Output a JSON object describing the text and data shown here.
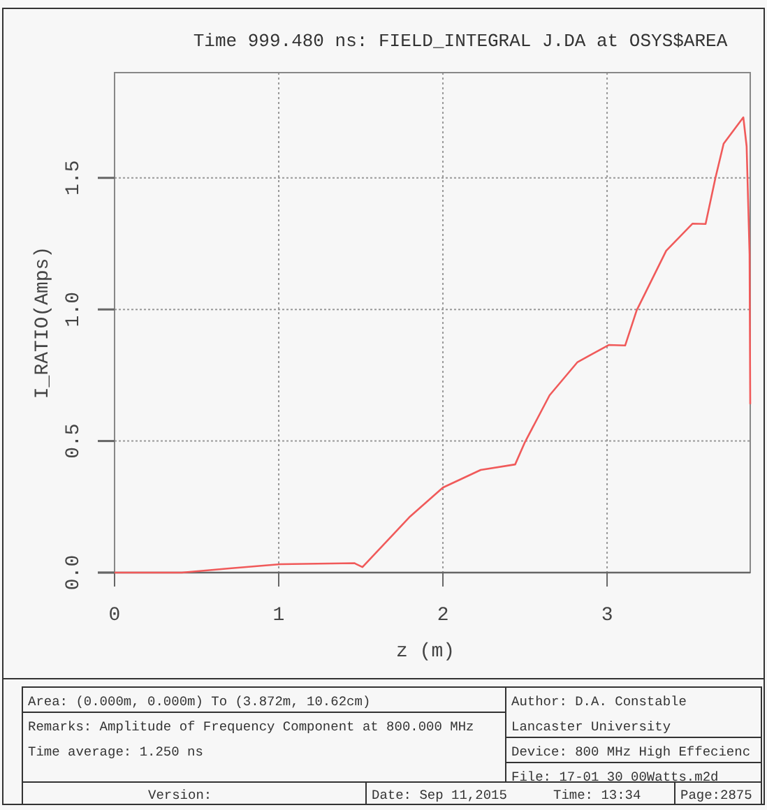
{
  "chart_data": {
    "type": "line",
    "title": "Time 999.480 ns:  FIELD_INTEGRAL J.DA at OSYS$AREA",
    "xlabel": "z (m)",
    "ylabel": "I_RATIO(Amps)",
    "xlim": [
      0,
      3.872
    ],
    "ylim": [
      0,
      1.9
    ],
    "xticks": [
      0,
      1,
      2,
      3
    ],
    "yticks": [
      {
        "value": 0,
        "label": "0.0"
      },
      {
        "value": 0.5,
        "label": "0.5"
      },
      {
        "value": 1,
        "label": "1.0"
      },
      {
        "value": 1.5,
        "label": "1.5"
      }
    ],
    "grid": true,
    "marker": "none",
    "line_style": "solid",
    "series": [
      {
        "color": "#f05a5a",
        "x": [
          0,
          0.41,
          0.7,
          1.01,
          1.46,
          1.51,
          1.8,
          2.0,
          2.23,
          2.44,
          2.5,
          2.65,
          2.82,
          3.01,
          3.11,
          3.18,
          3.36,
          3.52,
          3.6,
          3.66,
          3.71,
          3.83,
          3.85,
          3.868,
          3.872
        ],
        "values": [
          0,
          0,
          0.016,
          0.032,
          0.036,
          0.021,
          0.213,
          0.323,
          0.39,
          0.411,
          0.496,
          0.674,
          0.8,
          0.865,
          0.863,
          0.996,
          1.223,
          1.326,
          1.325,
          1.5,
          1.63,
          1.73,
          1.62,
          1.21,
          0.64
        ]
      }
    ],
    "annotations": [
      "Area: (0.000m, 0.000m) To (3.872m, 10.62cm)",
      "Remarks: Amplitude of Frequency Component at 800.000 MHz",
      "Time average: 1.250 ns",
      "Author: D.A. Constable",
      "Lancaster University",
      "Device: 800 MHz High Effecienc",
      "File: 17-01 30 00Watts.m2d",
      "Version:",
      "Date: Sep 11,2015",
      "Time: 13:34",
      "Page:2875"
    ]
  }
}
